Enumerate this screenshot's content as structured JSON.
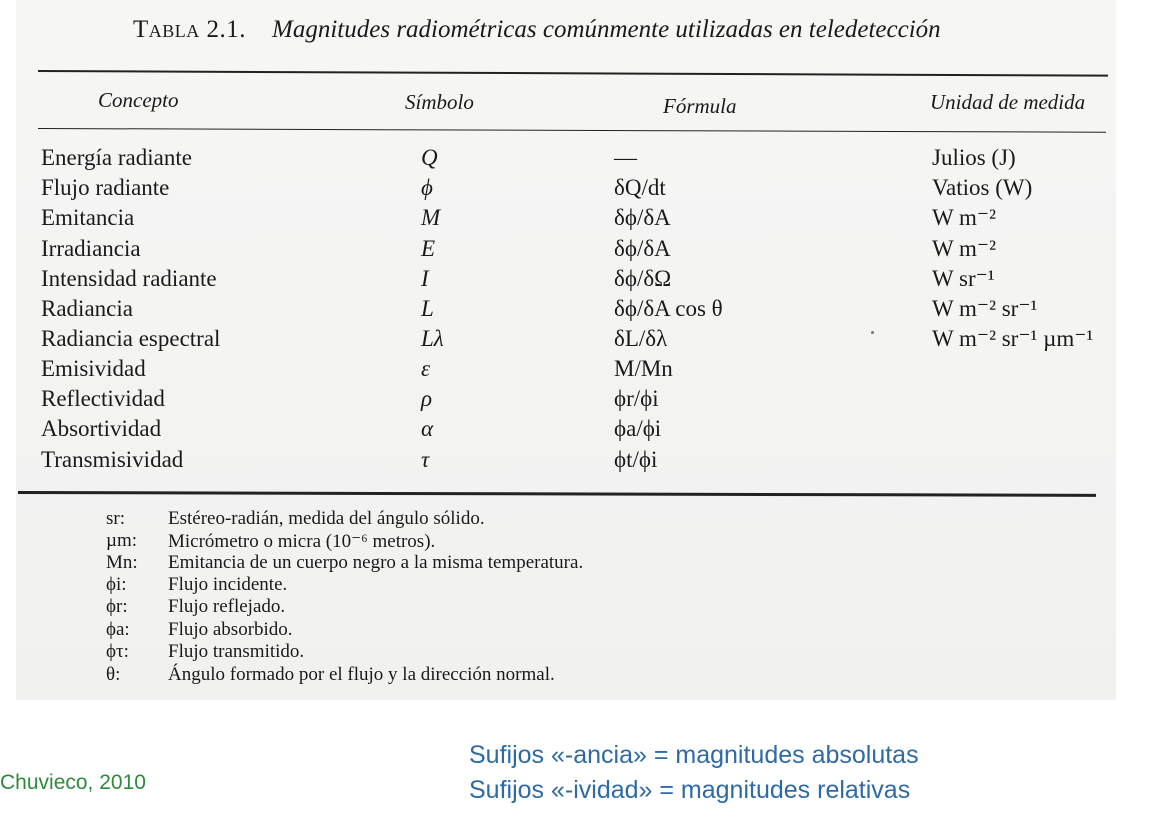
{
  "caption": {
    "label": "Tabla 2.1.",
    "title": "Magnitudes radiométricas comúnmente utilizadas en teledetección"
  },
  "headers": {
    "concept": "Concepto",
    "symbol": "Símbolo",
    "formula": "Fórmula",
    "unit": "Unidad de medida"
  },
  "rows": [
    {
      "concept": "Energía radiante",
      "symbol": "Q",
      "formula": "—",
      "unit": "Julios (J)"
    },
    {
      "concept": "Flujo radiante",
      "symbol": "ϕ",
      "formula": "δQ/dt",
      "unit": "Vatios (W)"
    },
    {
      "concept": "Emitancia",
      "symbol": "M",
      "formula": "δϕ/δA",
      "unit": "W m⁻²"
    },
    {
      "concept": "Irradiancia",
      "symbol": "E",
      "formula": "δϕ/δA",
      "unit": "W m⁻²"
    },
    {
      "concept": "Intensidad radiante",
      "symbol": "I",
      "formula": "δϕ/δΩ",
      "unit": "W sr⁻¹"
    },
    {
      "concept": "Radiancia",
      "symbol": "L",
      "formula": "δϕ/δA cos θ",
      "unit": "W m⁻² sr⁻¹"
    },
    {
      "concept": "Radiancia espectral",
      "symbol": "Lλ",
      "formula": "δL/δλ",
      "unit": "W m⁻² sr⁻¹ µm⁻¹"
    },
    {
      "concept": "Emisividad",
      "symbol": "ε",
      "formula": "M/Mn",
      "unit": ""
    },
    {
      "concept": "Reflectividad",
      "symbol": "ρ",
      "formula": "ϕr/ϕi",
      "unit": ""
    },
    {
      "concept": "Absortividad",
      "symbol": "α",
      "formula": "ϕa/ϕi",
      "unit": ""
    },
    {
      "concept": "Transmisividad",
      "symbol": "τ",
      "formula": "ϕt/ϕi",
      "unit": ""
    }
  ],
  "notes": [
    {
      "symbol": "sr:",
      "text": "Estéreo-radián, medida del ángulo sólido."
    },
    {
      "symbol": "µm:",
      "text": "Micrómetro o micra (10⁻⁶ metros)."
    },
    {
      "symbol": "Mn:",
      "text": "Emitancia de un cuerpo negro a la misma temperatura."
    },
    {
      "symbol": "ϕi:",
      "text": "Flujo incidente."
    },
    {
      "symbol": "ϕr:",
      "text": "Flujo reflejado."
    },
    {
      "symbol": "ϕa:",
      "text": "Flujo absorbido."
    },
    {
      "symbol": "ϕτ:",
      "text": "Flujo transmitido."
    },
    {
      "symbol": "θ:",
      "text": "Ángulo formado por el flujo y la dirección normal."
    }
  ],
  "suffix_notes": [
    "Sufijos «-ancia» = magnitudes absolutas",
    "Sufijos «-ividad» = magnitudes relativas"
  ],
  "credit": "Chuvieco, 2010",
  "colors": {
    "suffix_text": "#2e6aa6",
    "credit_text": "#2d8a3e"
  }
}
